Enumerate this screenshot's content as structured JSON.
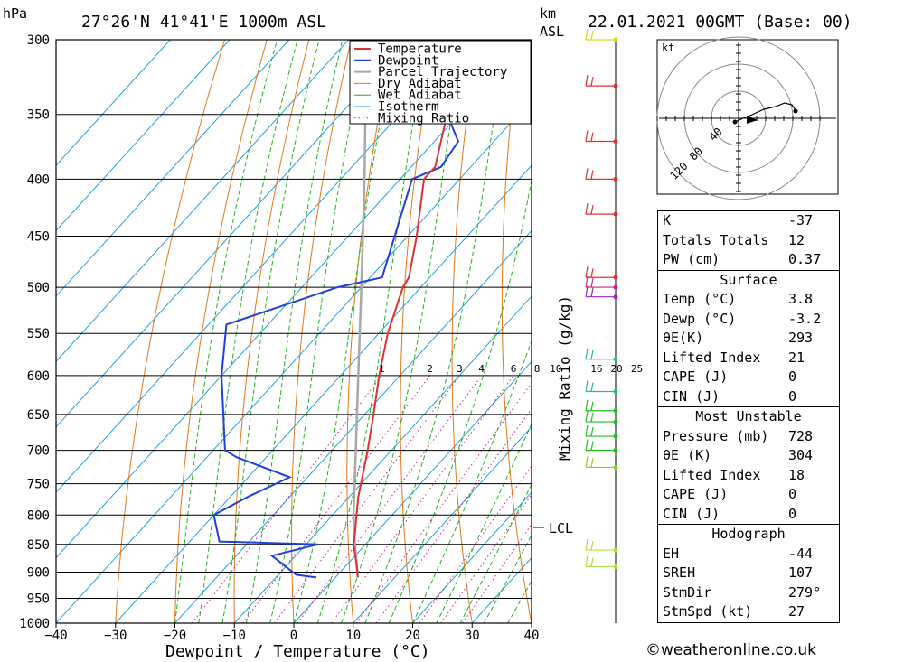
{
  "header": {
    "pressure_unit": "hPa",
    "location": "27°26'N 41°41'E 1000m ASL",
    "km_label": "km",
    "asl_label": "ASL",
    "datetime": "22.01.2021 00GMT (Base: 00)"
  },
  "chart_data": {
    "type": "line",
    "diagram": "skew-T log-p",
    "xlabel": "Dewpoint / Temperature (°C)",
    "ylabel_left": "hPa",
    "ylabel_right": "Mixing Ratio (g/kg)",
    "x_ticks": [
      -40,
      -30,
      -20,
      -10,
      0,
      10,
      20,
      30,
      40
    ],
    "y_ticks": [
      300,
      350,
      400,
      450,
      500,
      550,
      600,
      650,
      700,
      750,
      800,
      850,
      900,
      950,
      1000
    ],
    "xlim": [
      -40,
      40
    ],
    "ylim": [
      1000,
      300
    ],
    "mixing_ratio_labels": [
      "1",
      "2",
      "3",
      "4",
      "6",
      "8",
      "10",
      "16",
      "20",
      "25"
    ],
    "lcl_label": "LCL",
    "lcl_pressure": 835,
    "legend": [
      "Temperature",
      "Dewpoint",
      "Parcel Trajectory",
      "Dry Adiabat",
      "Wet Adiabat",
      "Isotherm",
      "Mixing Ratio"
    ],
    "legend_position": "top-right",
    "colors": {
      "temperature": "#e03030",
      "dewpoint": "#2040d8",
      "parcel": "#a8a8a8",
      "dry_adiabat": "#e07818",
      "wet_adiabat": "#20b020",
      "isotherm": "#20a0e0",
      "mixing_ratio": "#d0208c"
    },
    "temperature": [
      {
        "p": 910,
        "t": 3.8
      },
      {
        "p": 880,
        "t": 1.0
      },
      {
        "p": 850,
        "t": -2.0
      },
      {
        "p": 830,
        "t": -3.5
      },
      {
        "p": 800,
        "t": -6.0
      },
      {
        "p": 770,
        "t": -8.5
      },
      {
        "p": 740,
        "t": -10.8
      },
      {
        "p": 700,
        "t": -14.0
      },
      {
        "p": 650,
        "t": -18.5
      },
      {
        "p": 600,
        "t": -23.5
      },
      {
        "p": 550,
        "t": -28.5
      },
      {
        "p": 500,
        "t": -33.0
      },
      {
        "p": 490,
        "t": -33.5
      },
      {
        "p": 450,
        "t": -38.5
      },
      {
        "p": 400,
        "t": -46.0
      },
      {
        "p": 390,
        "t": -46.0
      },
      {
        "p": 350,
        "t": -52.0
      },
      {
        "p": 300,
        "t": -60.0
      }
    ],
    "dewpoint": [
      {
        "p": 910,
        "t": -3.2
      },
      {
        "p": 905,
        "t": -7.0
      },
      {
        "p": 870,
        "t": -14.0
      },
      {
        "p": 850,
        "t": -8.0
      },
      {
        "p": 845,
        "t": -25.0
      },
      {
        "p": 800,
        "t": -30.0
      },
      {
        "p": 770,
        "t": -27.0
      },
      {
        "p": 740,
        "t": -23.0
      },
      {
        "p": 710,
        "t": -35.0
      },
      {
        "p": 700,
        "t": -38.0
      },
      {
        "p": 600,
        "t": -50.0
      },
      {
        "p": 540,
        "t": -57.0
      },
      {
        "p": 500,
        "t": -44.0
      },
      {
        "p": 490,
        "t": -38.0
      },
      {
        "p": 400,
        "t": -48.0
      },
      {
        "p": 390,
        "t": -45.0
      },
      {
        "p": 370,
        "t": -46.0
      },
      {
        "p": 350,
        "t": -52.0
      },
      {
        "p": 320,
        "t": -58.0
      },
      {
        "p": 300,
        "t": -61.0
      }
    ],
    "parcel": [
      {
        "p": 910,
        "t": 3.8
      },
      {
        "p": 835,
        "t": -3.2
      },
      {
        "p": 800,
        "t": -6.5
      },
      {
        "p": 700,
        "t": -16.0
      },
      {
        "p": 600,
        "t": -27.0
      },
      {
        "p": 500,
        "t": -40.0
      },
      {
        "p": 400,
        "t": -56.0
      },
      {
        "p": 300,
        "t": -77.0
      }
    ]
  },
  "hodograph": {
    "unit": "kt",
    "ring_labels": [
      "40",
      "80",
      "120"
    ]
  },
  "indices": {
    "general": [
      {
        "label": "K",
        "value": "-37"
      },
      {
        "label": "Totals Totals",
        "value": "12"
      },
      {
        "label": "PW (cm)",
        "value": "0.37"
      }
    ],
    "surface": {
      "title": "Surface",
      "rows": [
        {
          "label": "Temp (°C)",
          "value": "3.8"
        },
        {
          "label": "Dewp (°C)",
          "value": "-3.2"
        },
        {
          "label": "θE(K)",
          "value": "293"
        },
        {
          "label": "Lifted Index",
          "value": "21"
        },
        {
          "label": "CAPE (J)",
          "value": "0"
        },
        {
          "label": "CIN (J)",
          "value": "0"
        }
      ]
    },
    "most_unstable": {
      "title": "Most Unstable",
      "rows": [
        {
          "label": "Pressure (mb)",
          "value": "728"
        },
        {
          "label": "θE (K)",
          "value": "304"
        },
        {
          "label": "Lifted Index",
          "value": "18"
        },
        {
          "label": "CAPE (J)",
          "value": "0"
        },
        {
          "label": "CIN (J)",
          "value": "0"
        }
      ]
    },
    "hodograph": {
      "title": "Hodograph",
      "rows": [
        {
          "label": "EH",
          "value": "-44"
        },
        {
          "label": "SREH",
          "value": "107"
        },
        {
          "label": "StmDir",
          "value": "279°"
        },
        {
          "label": "StmSpd (kt)",
          "value": "27"
        }
      ]
    }
  },
  "credit": "©weatheronline.co.uk"
}
